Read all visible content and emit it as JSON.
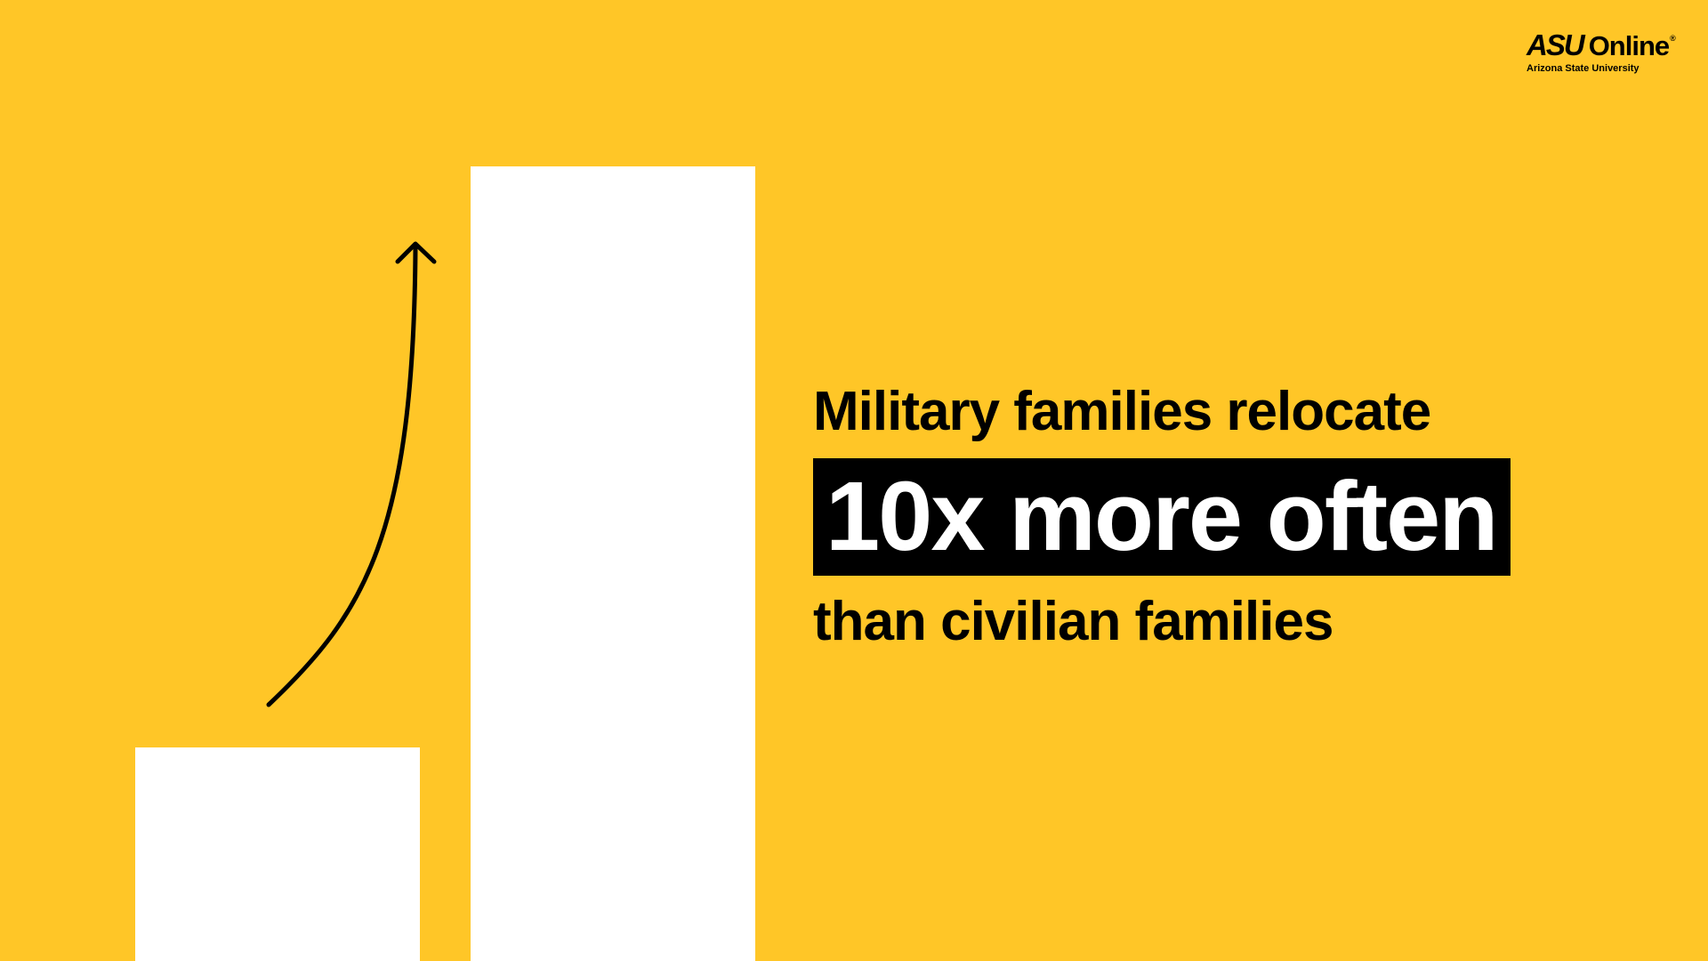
{
  "logo": {
    "brand": "ASU",
    "product": "Online",
    "registered_mark": "®",
    "subtitle": "Arizona State University"
  },
  "headline": {
    "line1": "Military families relocate",
    "highlight": "10x more often",
    "line3": "than civilian families"
  },
  "colors": {
    "background": "#FFC627",
    "bars": "#FFFFFF",
    "text": "#000000",
    "highlight_background": "#000000",
    "highlight_text": "#FFFFFF"
  },
  "graphic": {
    "bars": [
      {
        "name": "civilian-families",
        "relative_height": 1
      },
      {
        "name": "military-families",
        "relative_height": 3.7
      }
    ],
    "arrow_icon": "curved-up-arrow-icon"
  }
}
